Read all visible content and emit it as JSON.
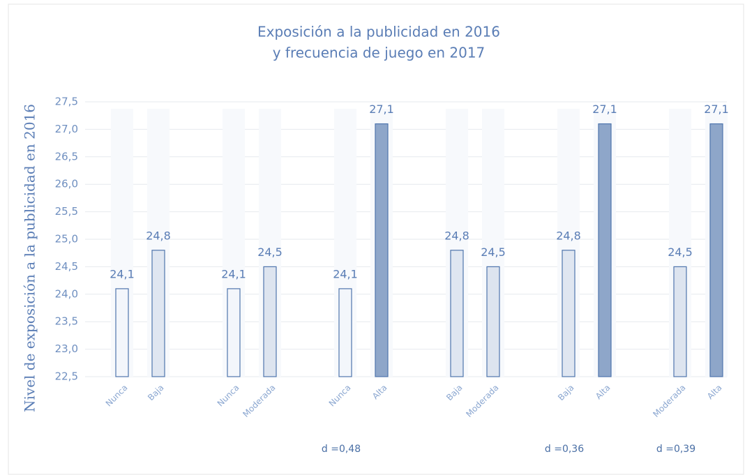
{
  "chart_data": {
    "type": "bar",
    "title": [
      "Exposición a la publicidad en 2016",
      "y frecuencia de juego en 2017"
    ],
    "y_label": "Nivel de exposición a la publicidad en 2016",
    "categories": [
      "Nunca",
      "Baja",
      "Nunca",
      "Moderada",
      "Nunca",
      "Alta",
      "Baja",
      "Moderada",
      "Baja",
      "Alta",
      "Moderada",
      "Alta"
    ],
    "values": [
      24.1,
      24.8,
      24.1,
      24.5,
      24.1,
      27.1,
      24.8,
      24.5,
      24.8,
      27.1,
      24.5,
      27.1
    ],
    "value_labels": [
      "24,1",
      "24,8",
      "24,1",
      "24,5",
      "24,1",
      "27,1",
      "24,8",
      "24,5",
      "24,8",
      "27,1",
      "24,5",
      "27,1"
    ],
    "colors": [
      "#f3f6fb",
      "#dfe6f1",
      "#f3f6fb",
      "#dde4ef",
      "#f3f6fb",
      "#8ea6c9",
      "#dfe6f1",
      "#dde4ef",
      "#dfe6f1",
      "#8ea6c9",
      "#dde4ef",
      "#8ea6c9"
    ],
    "annotations": [
      "d =0,48",
      "d =0,36",
      "d =0,39"
    ],
    "ylim": [
      22.5,
      27.5
    ],
    "yticks": [
      {
        "value": 22.5,
        "label": "22,5"
      },
      {
        "value": 23,
        "label": "23,0"
      },
      {
        "value": 23.5,
        "label": "23,5"
      },
      {
        "value": 24,
        "label": "24,0"
      },
      {
        "value": 24.5,
        "label": "24,5"
      },
      {
        "value": 25,
        "label": "25,0"
      },
      {
        "value": 25.5,
        "label": "25,5"
      },
      {
        "value": 26,
        "label": "26,0"
      },
      {
        "value": 26.5,
        "label": "26,5"
      },
      {
        "value": 27,
        "label": "27,0"
      },
      {
        "value": 27.5,
        "label": "27,5"
      }
    ],
    "grid": true
  }
}
